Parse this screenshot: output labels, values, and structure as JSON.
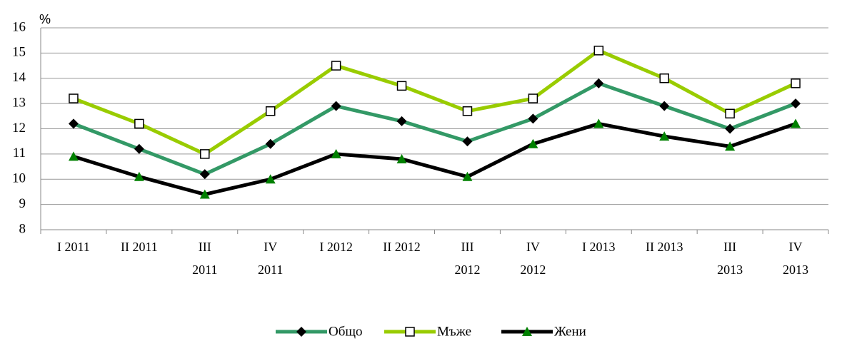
{
  "chart_data": {
    "type": "line",
    "y_unit": "%",
    "categories": [
      "I 2011",
      "II 2011",
      "III 2011",
      "IV 2011",
      "I 2012",
      "II 2012",
      "III 2012",
      "IV 2012",
      "I 2013",
      "II 2013",
      "III 2013",
      "IV 2013"
    ],
    "series": [
      {
        "name": "Общо",
        "color": "#339966",
        "marker": "diamond",
        "marker_color": "#000000",
        "values": [
          12.2,
          11.2,
          10.2,
          11.4,
          12.9,
          12.3,
          11.5,
          12.4,
          13.8,
          12.9,
          12.0,
          13.0
        ]
      },
      {
        "name": "Мъже",
        "color": "#99cc00",
        "marker": "square",
        "marker_color": "#ffffff",
        "values": [
          13.2,
          12.2,
          11.0,
          12.7,
          14.5,
          13.7,
          12.7,
          13.2,
          15.1,
          14.0,
          12.6,
          13.8
        ]
      },
      {
        "name": "Жени",
        "color": "#000000",
        "marker": "triangle",
        "marker_color": "#008000",
        "values": [
          10.9,
          10.1,
          9.4,
          10.0,
          11.0,
          10.8,
          10.1,
          11.4,
          12.2,
          11.7,
          11.3,
          12.2
        ]
      }
    ],
    "ylim": [
      8,
      16
    ],
    "yticks": [
      8,
      9,
      10,
      11,
      12,
      13,
      14,
      15,
      16
    ],
    "grid": true,
    "legend": "bottom"
  }
}
